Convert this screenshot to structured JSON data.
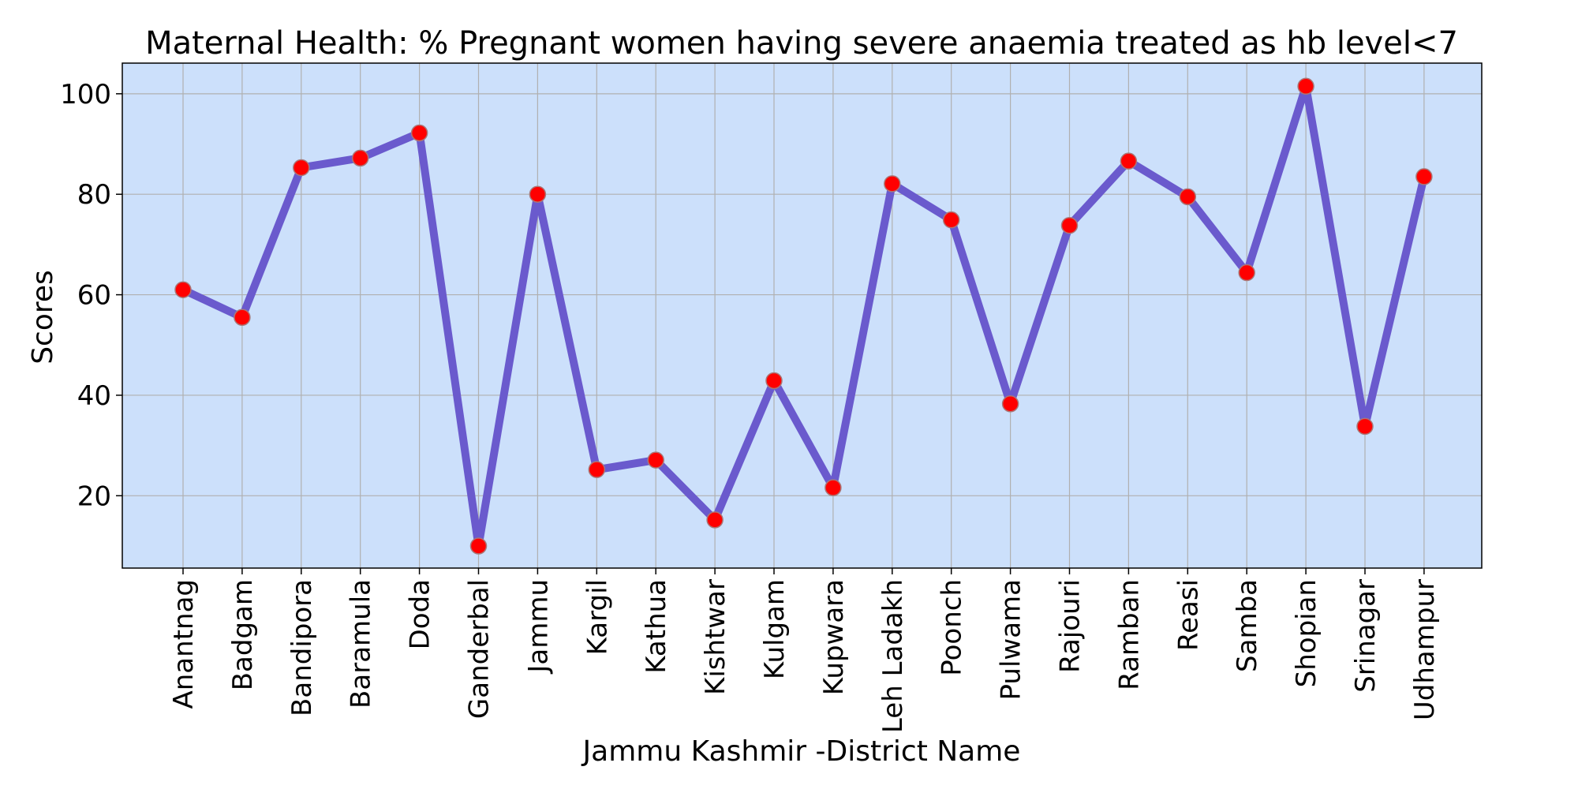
{
  "chart_data": {
    "type": "line",
    "title": "Maternal Health:  % Pregnant women having severe anaemia treated as hb level<7",
    "xlabel": "Jammu Kashmir -District Name",
    "ylabel": "Scores",
    "categories": [
      "Anantnag",
      "Badgam",
      "Bandipora",
      "Baramula",
      "Doda",
      "Ganderbal",
      "Jammu",
      "Kargil",
      "Kathua",
      "Kishtwar",
      "Kulgam",
      "Kupwara",
      "Leh Ladakh",
      "Poonch",
      "Pulwama",
      "Rajouri",
      "Ramban",
      "Reasi",
      "Samba",
      "Shopian",
      "Srinagar",
      "Udhampur"
    ],
    "series": [
      {
        "values": [
          61.0,
          55.5,
          85.3,
          87.2,
          92.2,
          10.0,
          80.0,
          25.2,
          27.1,
          15.2,
          42.9,
          21.6,
          82.1,
          74.9,
          38.3,
          73.8,
          86.6,
          79.5,
          64.4,
          101.5,
          33.8,
          83.5
        ]
      }
    ],
    "ylim": [
      5.6,
      106.1
    ],
    "yticks": [
      20,
      40,
      60,
      80,
      100
    ],
    "grid": true,
    "colors": {
      "plot_bg": "#cce0fb",
      "line": "#6a5acd",
      "marker": "#ff0000",
      "marker_edge": "#aa7777"
    }
  }
}
